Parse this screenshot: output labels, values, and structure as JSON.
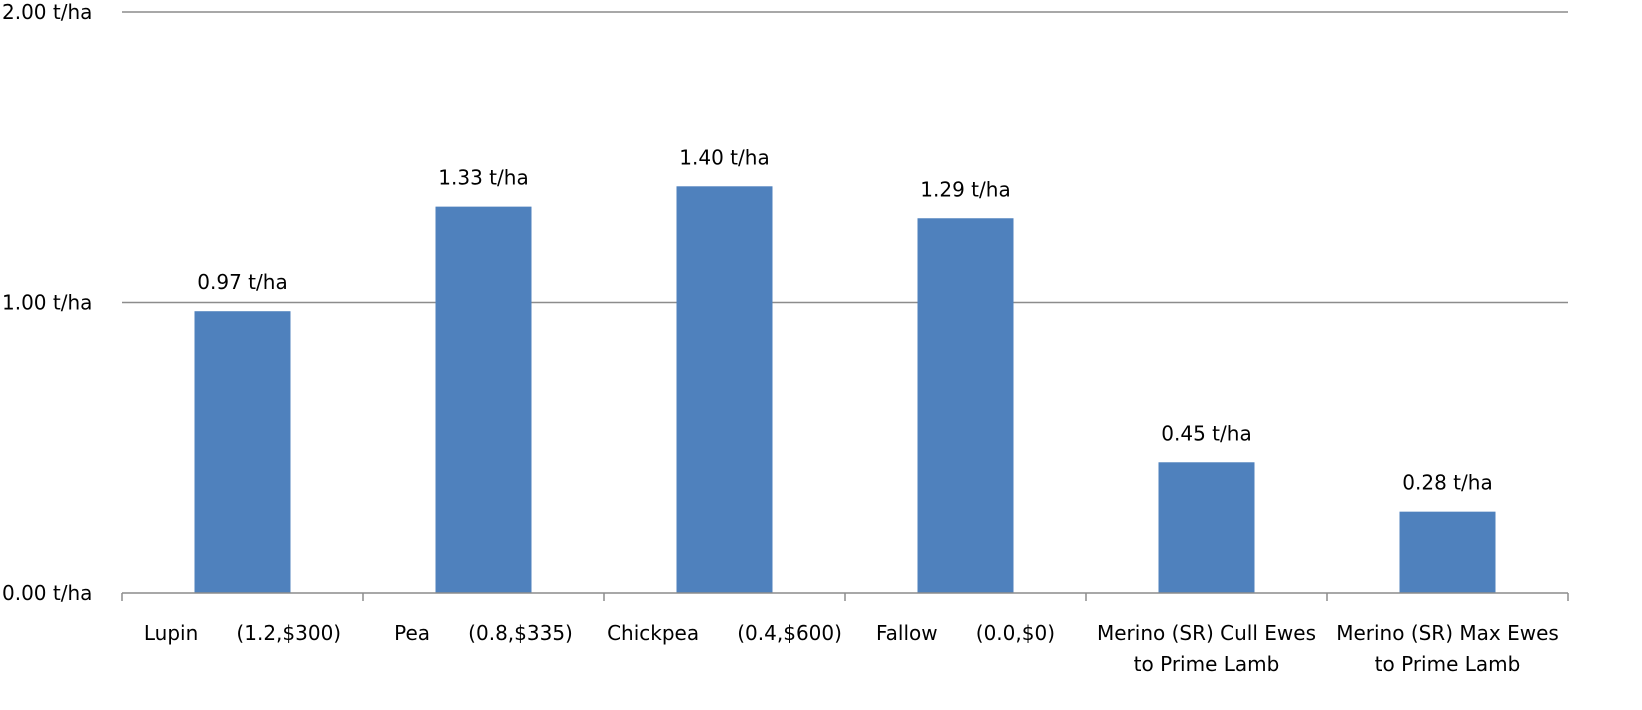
{
  "chart_data": {
    "type": "bar",
    "categories": [
      [
        "Lupin      (1.2,$300)"
      ],
      [
        "Pea      (0.8,$335)"
      ],
      [
        "Chickpea      (0.4,$600)"
      ],
      [
        "Fallow      (0.0,$0)"
      ],
      [
        "Merino (SR) Cull Ewes",
        "to Prime Lamb"
      ],
      [
        "Merino (SR) Max Ewes",
        "to Prime Lamb"
      ]
    ],
    "values": [
      0.97,
      1.33,
      1.4,
      1.29,
      0.45,
      0.28
    ],
    "data_labels": [
      "0.97 t/ha",
      "1.33 t/ha",
      "1.40 t/ha",
      "1.29 t/ha",
      "0.45 t/ha",
      "0.28 t/ha"
    ],
    "y_ticks": [
      0,
      1,
      2
    ],
    "y_tick_labels": [
      "0.00 t/ha",
      "1.00 t/ha",
      "2.00 t/ha"
    ],
    "ylim": [
      0,
      2
    ],
    "title": "",
    "xlabel": "",
    "ylabel": "",
    "grid": true,
    "legend": "none",
    "bar_color": "#4F81BD",
    "grid_color": "#8C8C8C"
  }
}
